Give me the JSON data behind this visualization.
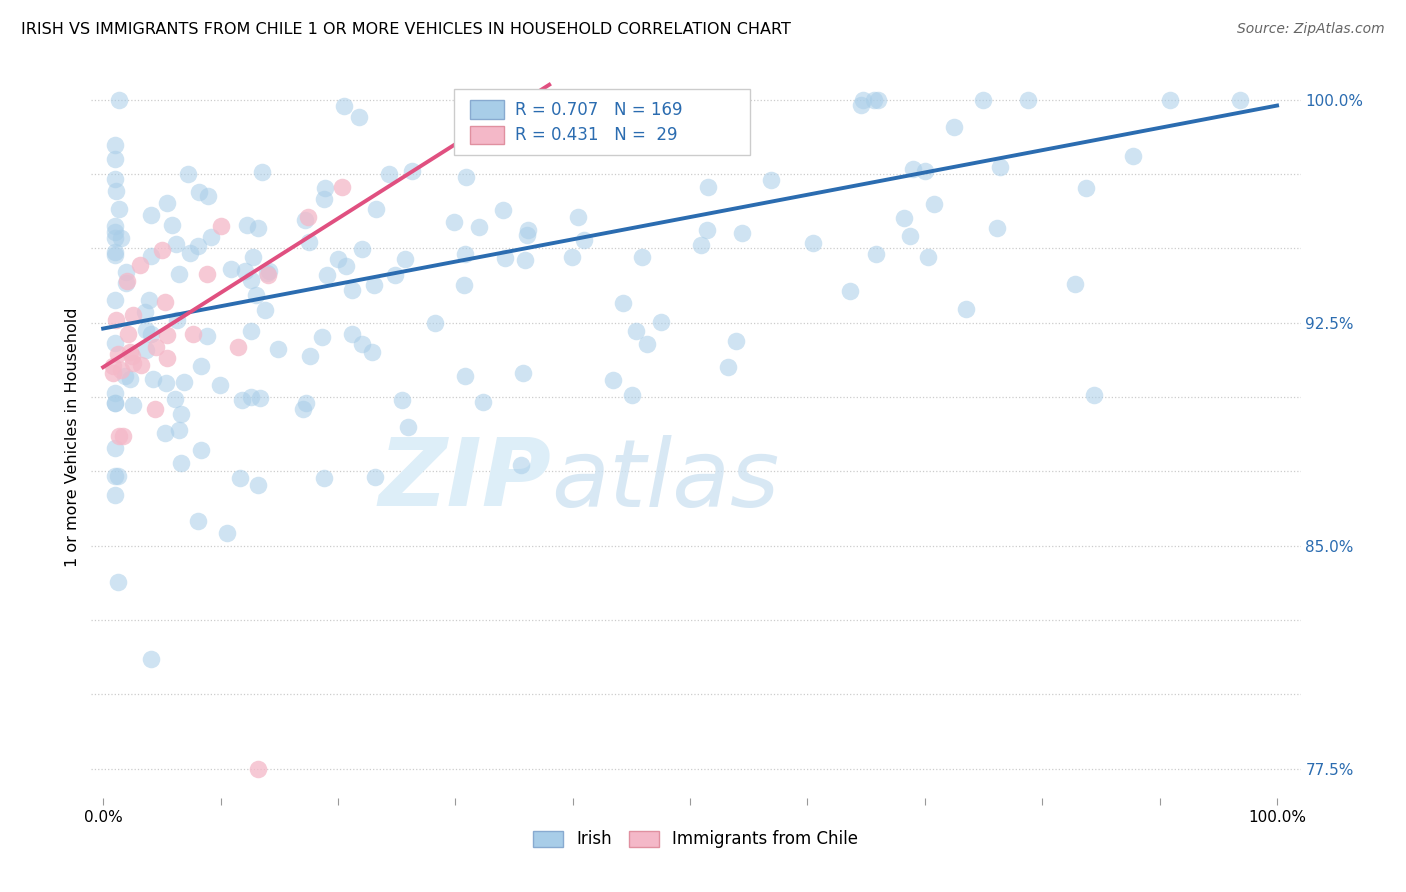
{
  "title": "IRISH VS IMMIGRANTS FROM CHILE 1 OR MORE VEHICLES IN HOUSEHOLD CORRELATION CHART",
  "source": "Source: ZipAtlas.com",
  "ylabel": "1 or more Vehicles in Household",
  "irish_R": 0.707,
  "irish_N": 169,
  "chile_R": 0.431,
  "chile_N": 29,
  "irish_color": "#a8cde8",
  "chile_color": "#f4b8c8",
  "irish_line_color": "#2b6cb0",
  "chile_line_color": "#e05080",
  "background_color": "#ffffff",
  "watermark_color": "#ddeef8",
  "y_min": 0.765,
  "y_max": 1.008,
  "x_min": -0.01,
  "x_max": 1.02,
  "yticks": [
    0.775,
    0.8,
    0.825,
    0.85,
    0.875,
    0.9,
    0.925,
    0.95,
    0.975,
    1.0
  ],
  "ytick_labels": [
    "77.5%",
    "",
    "",
    "85.0%",
    "",
    "",
    "92.5%",
    "",
    "",
    "100.0%"
  ],
  "xticks": [
    0.0,
    0.1,
    0.2,
    0.3,
    0.4,
    0.5,
    0.6,
    0.7,
    0.8,
    0.9,
    1.0
  ],
  "xtick_labels": [
    "0.0%",
    "",
    "",
    "",
    "",
    "",
    "",
    "",
    "",
    "",
    "100.0%"
  ],
  "irish_line_x0": 0.0,
  "irish_line_y0": 0.923,
  "irish_line_x1": 1.0,
  "irish_line_y1": 0.998,
  "chile_line_x0": 0.0,
  "chile_line_y0": 0.91,
  "chile_line_x1": 0.38,
  "chile_line_y1": 1.005
}
